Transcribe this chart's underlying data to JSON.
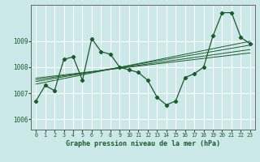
{
  "title": "Graphe pression niveau de la mer (hPa)",
  "background_color": "#cce8e8",
  "grid_color": "#ffffff",
  "line_color": "#1a5c2a",
  "xlim": [
    -0.5,
    23.5
  ],
  "ylim": [
    1005.6,
    1010.4
  ],
  "yticks": [
    1006,
    1007,
    1008,
    1009
  ],
  "xticks": [
    0,
    1,
    2,
    3,
    4,
    5,
    6,
    7,
    8,
    9,
    10,
    11,
    12,
    13,
    14,
    15,
    16,
    17,
    18,
    19,
    20,
    21,
    22,
    23
  ],
  "main_series_x": [
    0,
    1,
    2,
    3,
    4,
    5,
    6,
    7,
    8,
    9,
    10,
    11,
    12,
    13,
    14,
    15,
    16,
    17,
    18,
    19,
    20,
    21,
    22,
    23
  ],
  "main_series_y": [
    1006.7,
    1007.3,
    1007.1,
    1008.3,
    1008.4,
    1007.5,
    1009.1,
    1008.6,
    1008.5,
    1008.0,
    1007.9,
    1007.8,
    1007.5,
    1006.85,
    1006.55,
    1006.7,
    1007.6,
    1007.75,
    1008.0,
    1009.2,
    1010.1,
    1010.1,
    1009.15,
    1008.9
  ],
  "trend_lines": [
    {
      "x": [
        0,
        23
      ],
      "y": [
        1007.35,
        1009.0
      ]
    },
    {
      "x": [
        0,
        23
      ],
      "y": [
        1007.45,
        1008.85
      ]
    },
    {
      "x": [
        0,
        23
      ],
      "y": [
        1007.52,
        1008.68
      ]
    },
    {
      "x": [
        0,
        23
      ],
      "y": [
        1007.58,
        1008.55
      ]
    }
  ]
}
